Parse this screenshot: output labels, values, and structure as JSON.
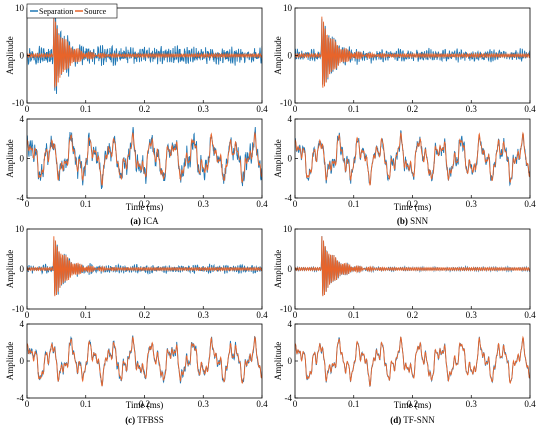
{
  "legend": {
    "entries": [
      {
        "label": "Separation",
        "color": "#1f77b4"
      },
      {
        "label": "Source",
        "color": "#e8642a"
      }
    ]
  },
  "colors": {
    "separation": "#1f77b4",
    "source": "#e8642a",
    "axes": "#000000"
  },
  "chart_data": [
    {
      "id": "a",
      "caption_letter": "(a)",
      "caption_text": "ICA",
      "xlabel": "Time (ms)",
      "x_range": [
        0,
        0.4
      ],
      "x_ticks": [
        "0",
        "0.1",
        "0.2",
        "0.3",
        "0.4"
      ],
      "plots": [
        {
          "type": "line",
          "ylabel": "Amplitude",
          "ylim": [
            -10,
            10
          ],
          "y_ticks": [
            "10",
            "0",
            "-10"
          ],
          "signal": "transient",
          "separation_noise": 1.2
        },
        {
          "type": "line",
          "ylabel": "Amplitude",
          "ylim": [
            -4,
            4
          ],
          "y_ticks": [
            "4",
            "0",
            "-4"
          ],
          "signal": "oscillation",
          "separation_noise": 0.55
        }
      ],
      "series": [
        {
          "name": "Separation"
        },
        {
          "name": "Source"
        }
      ]
    },
    {
      "id": "b",
      "caption_letter": "(b)",
      "caption_text": "SNN",
      "xlabel": "Time (ms)",
      "x_range": [
        0,
        0.4
      ],
      "x_ticks": [
        "0",
        "0.1",
        "0.2",
        "0.3",
        "0.4"
      ],
      "plots": [
        {
          "type": "line",
          "ylabel": "Amplitude",
          "ylim": [
            -10,
            10
          ],
          "y_ticks": [
            "10",
            "0",
            "-10"
          ],
          "signal": "transient",
          "separation_noise": 0.8
        },
        {
          "type": "line",
          "ylabel": "Amplitude",
          "ylim": [
            -4,
            4
          ],
          "y_ticks": [
            "4",
            "0",
            "-4"
          ],
          "signal": "oscillation",
          "separation_noise": 0.35
        }
      ],
      "series": [
        {
          "name": "Separation"
        },
        {
          "name": "Source"
        }
      ]
    },
    {
      "id": "c",
      "caption_letter": "(c)",
      "caption_text": "TFBSS",
      "xlabel": "Time (ms)",
      "x_range": [
        0,
        0.4
      ],
      "x_ticks": [
        "0",
        "0.1",
        "0.2",
        "0.3",
        "0.4"
      ],
      "plots": [
        {
          "type": "line",
          "ylabel": "Amplitude",
          "ylim": [
            -10,
            10
          ],
          "y_ticks": [
            "10",
            "0",
            "-10"
          ],
          "signal": "transient",
          "separation_noise": 0.6
        },
        {
          "type": "line",
          "ylabel": "Amplitude",
          "ylim": [
            -4,
            4
          ],
          "y_ticks": [
            "4",
            "0",
            "-4"
          ],
          "signal": "oscillation",
          "separation_noise": 0.25
        }
      ],
      "series": [
        {
          "name": "Separation"
        },
        {
          "name": "Source"
        }
      ]
    },
    {
      "id": "d",
      "caption_letter": "(d)",
      "caption_text": "TF-SNN",
      "xlabel": "Time (ms)",
      "x_range": [
        0,
        0.4
      ],
      "x_ticks": [
        "0",
        "0.1",
        "0.2",
        "0.3",
        "0.4"
      ],
      "plots": [
        {
          "type": "line",
          "ylabel": "Amplitude",
          "ylim": [
            -10,
            10
          ],
          "y_ticks": [
            "10",
            "0",
            "-10"
          ],
          "signal": "transient",
          "separation_noise": 0.15
        },
        {
          "type": "line",
          "ylabel": "Amplitude",
          "ylim": [
            -4,
            4
          ],
          "y_ticks": [
            "4",
            "0",
            "-4"
          ],
          "signal": "oscillation",
          "separation_noise": 0.12
        }
      ],
      "series": [
        {
          "name": "Separation"
        },
        {
          "name": "Source"
        }
      ]
    }
  ]
}
